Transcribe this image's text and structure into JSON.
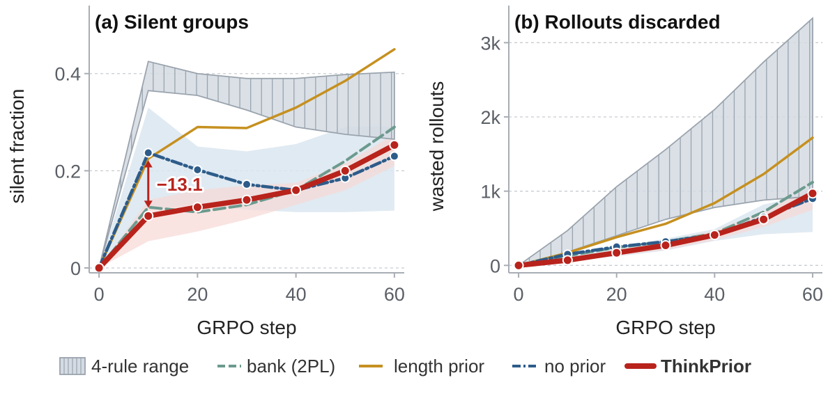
{
  "colors": {
    "range_fill": "#d4dbe2",
    "range_edge": "#9aa3ad",
    "bank": "#6c9a8e",
    "length_prior": "#c6901f",
    "no_prior": "#2d5c8a",
    "thinkprior": "#b8231c",
    "band_blue": "#dbe6f0",
    "band_red": "#f6d9d6"
  },
  "legend": {
    "items": [
      {
        "key": "range",
        "label": "4-rule range"
      },
      {
        "key": "bank",
        "label": "bank (2PL)"
      },
      {
        "key": "length_prior",
        "label": "length prior"
      },
      {
        "key": "no_prior",
        "label": "no prior"
      },
      {
        "key": "thinkprior",
        "label": "ThinkPrior"
      }
    ]
  },
  "chart_data": [
    {
      "type": "line",
      "title": "(a) Silent groups",
      "xlabel": "GRPO step",
      "ylabel": "silent fraction",
      "xlim": [
        -2,
        62
      ],
      "ylim": [
        -0.01,
        0.54
      ],
      "xticks": [
        0,
        20,
        40,
        60
      ],
      "xtick_labels": [
        "0",
        "20",
        "40",
        "60"
      ],
      "yticks": [
        0,
        0.2,
        0.4
      ],
      "ytick_labels": [
        "0",
        "0.2",
        "0.4"
      ],
      "grid": "y-dashed",
      "range_band": {
        "name": "4-rule range",
        "x": [
          0,
          10,
          20,
          30,
          40,
          50,
          60
        ],
        "low": [
          0.0,
          0.365,
          0.355,
          0.325,
          0.29,
          0.275,
          0.265
        ],
        "high": [
          0.0,
          0.425,
          0.4,
          0.39,
          0.39,
          0.398,
          0.403
        ]
      },
      "bands": [
        {
          "for": "no_prior",
          "x": [
            0,
            10,
            20,
            30,
            40,
            50,
            60
          ],
          "low": [
            0.0,
            0.12,
            0.13,
            0.12,
            0.115,
            0.115,
            0.118
          ],
          "high": [
            0.0,
            0.33,
            0.25,
            0.24,
            0.255,
            0.29,
            0.29
          ]
        },
        {
          "for": "thinkprior",
          "x": [
            0,
            10,
            20,
            30,
            40,
            50,
            60
          ],
          "low": [
            0.0,
            0.055,
            0.075,
            0.1,
            0.13,
            0.16,
            0.21
          ],
          "high": [
            0.0,
            0.14,
            0.16,
            0.17,
            0.175,
            0.215,
            0.275
          ]
        }
      ],
      "series": [
        {
          "name": "length prior",
          "key": "length_prior",
          "x": [
            0,
            10,
            20,
            30,
            40,
            50,
            60
          ],
          "y": [
            0.0,
            0.225,
            0.29,
            0.288,
            0.33,
            0.385,
            0.45
          ],
          "markers": false
        },
        {
          "name": "bank (2PL)",
          "key": "bank",
          "x": [
            0,
            10,
            20,
            30,
            40,
            50,
            60
          ],
          "y": [
            0.0,
            0.125,
            0.115,
            0.13,
            0.16,
            0.22,
            0.29
          ],
          "markers": false
        },
        {
          "name": "no prior",
          "key": "no_prior",
          "x": [
            0,
            10,
            20,
            30,
            40,
            50,
            60
          ],
          "y": [
            0.0,
            0.237,
            0.202,
            0.172,
            0.16,
            0.185,
            0.23
          ],
          "markers": true
        },
        {
          "name": "ThinkPrior",
          "key": "thinkprior",
          "x": [
            0,
            10,
            20,
            30,
            40,
            50,
            60
          ],
          "y": [
            0.0,
            0.107,
            0.125,
            0.14,
            0.16,
            0.2,
            0.253
          ],
          "markers": true
        }
      ],
      "annotation": {
        "text": "−13.1",
        "x": 10,
        "y_top": 0.237,
        "y_bottom": 0.107
      }
    },
    {
      "type": "line",
      "title": "(b) Rollouts discarded",
      "xlabel": "GRPO step",
      "ylabel": "wasted rollouts",
      "xlim": [
        -2,
        62
      ],
      "ylim": [
        -100,
        3500
      ],
      "xticks": [
        0,
        20,
        40,
        60
      ],
      "xtick_labels": [
        "0",
        "20",
        "40",
        "60"
      ],
      "yticks": [
        0,
        1000,
        2000,
        3000
      ],
      "ytick_labels": [
        "0",
        "1k",
        "2k",
        "3k"
      ],
      "grid": "y-dashed",
      "range_band": {
        "name": "4-rule range",
        "x": [
          0,
          10,
          20,
          30,
          40,
          50,
          60
        ],
        "low": [
          0,
          180,
          400,
          620,
          780,
          880,
          930
        ],
        "high": [
          0,
          470,
          1060,
          1560,
          2100,
          2740,
          3330
        ]
      },
      "bands": [
        {
          "for": "no_prior",
          "x": [
            0,
            10,
            20,
            30,
            40,
            50,
            60
          ],
          "low": [
            0,
            60,
            120,
            200,
            330,
            420,
            450
          ],
          "high": [
            0,
            120,
            240,
            360,
            490,
            820,
            970
          ]
        },
        {
          "for": "thinkprior",
          "x": [
            0,
            10,
            20,
            30,
            40,
            50,
            60
          ],
          "low": [
            0,
            50,
            130,
            210,
            340,
            520,
            750
          ],
          "high": [
            0,
            100,
            210,
            320,
            470,
            720,
            1060
          ]
        }
      ],
      "series": [
        {
          "name": "length prior",
          "key": "length_prior",
          "x": [
            0,
            10,
            20,
            30,
            40,
            50,
            60
          ],
          "y": [
            0,
            170,
            380,
            560,
            840,
            1230,
            1720
          ],
          "markers": false
        },
        {
          "name": "bank (2PL)",
          "key": "bank",
          "x": [
            0,
            10,
            20,
            30,
            40,
            50,
            60
          ],
          "y": [
            0,
            130,
            240,
            320,
            430,
            720,
            1120
          ],
          "markers": false
        },
        {
          "name": "no prior",
          "key": "no_prior",
          "x": [
            0,
            10,
            20,
            30,
            40,
            50,
            60
          ],
          "y": [
            0,
            150,
            250,
            320,
            410,
            650,
            900
          ],
          "markers": true
        },
        {
          "name": "ThinkPrior",
          "key": "thinkprior",
          "x": [
            0,
            10,
            20,
            30,
            40,
            50,
            60
          ],
          "y": [
            0,
            70,
            170,
            270,
            410,
            620,
            970
          ],
          "markers": true
        }
      ]
    }
  ]
}
